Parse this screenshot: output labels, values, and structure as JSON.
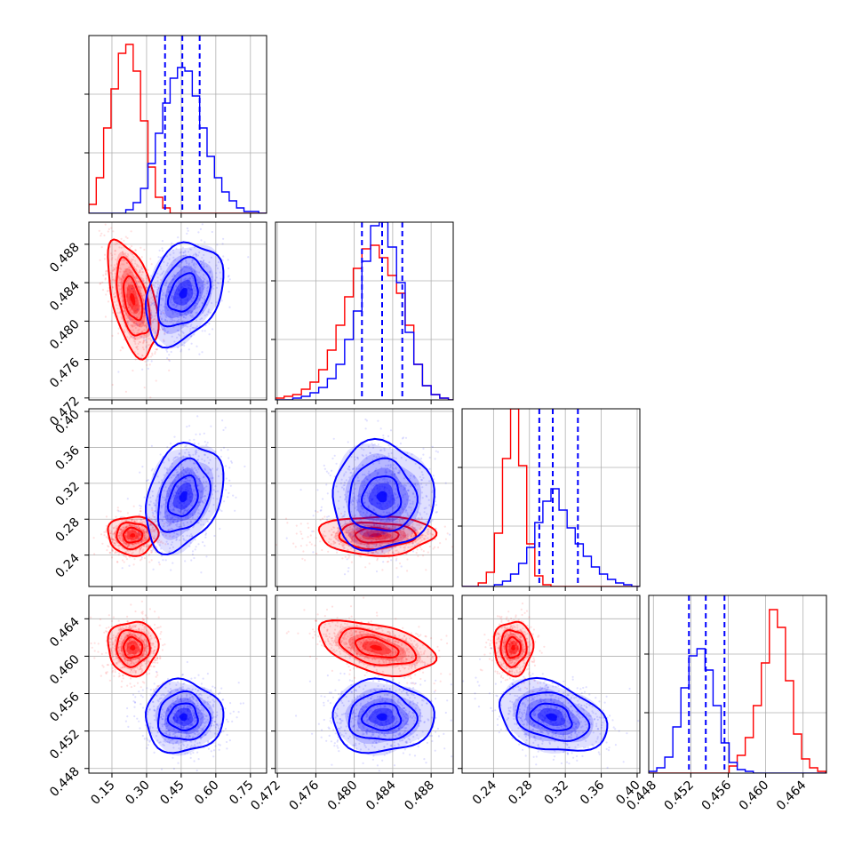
{
  "chart_data": {
    "type": "corner",
    "parameters": [
      {
        "index": 0,
        "range": [
          0.05,
          0.82
        ],
        "ticks": [
          0.15,
          0.3,
          0.45,
          0.6,
          0.75
        ],
        "tick_labels": [
          "0.15",
          "0.30",
          "0.45",
          "0.60",
          "0.75"
        ]
      },
      {
        "index": 1,
        "range": [
          0.4718,
          0.4903
        ],
        "ticks": [
          0.472,
          0.476,
          0.48,
          0.484,
          0.488
        ],
        "tick_labels": [
          "0.472",
          "0.476",
          "0.480",
          "0.484",
          "0.488"
        ]
      },
      {
        "index": 2,
        "range": [
          0.205,
          0.403
        ],
        "ticks": [
          0.24,
          0.28,
          0.32,
          0.36,
          0.4
        ],
        "tick_labels": [
          "0.24",
          "0.28",
          "0.32",
          "0.36",
          "0.40"
        ]
      },
      {
        "index": 3,
        "range": [
          0.4475,
          0.4665
        ],
        "ticks": [
          0.448,
          0.452,
          0.456,
          0.46,
          0.464
        ],
        "tick_labels": [
          "0.448",
          "0.452",
          "0.456",
          "0.460",
          "0.464"
        ]
      }
    ],
    "series": [
      {
        "name": "red",
        "color": "#ff0000",
        "mean": [
          0.24,
          0.4823,
          0.262,
          0.4609
        ],
        "sigma": [
          0.045,
          0.0025,
          0.009,
          0.0012
        ],
        "corr": {
          "0-1": -0.5,
          "0-2": 0.0,
          "0-3": 0.0,
          "1-2": 0.0,
          "1-3": -0.45,
          "2-3": 0.0
        },
        "quantiles": null
      },
      {
        "name": "blue",
        "color": "#0000ff",
        "mean": [
          0.46,
          0.4829,
          0.305,
          0.4535
        ],
        "sigma": [
          0.07,
          0.0022,
          0.025,
          0.0016
        ],
        "corr": {
          "0-1": 0.3,
          "0-2": 0.3,
          "0-3": 0.0,
          "1-2": 0.0,
          "1-3": 0.0,
          "2-3": -0.3
        },
        "quantiles": [
          [
            0.38,
            0.455,
            0.53
          ],
          [
            0.4808,
            0.4829,
            0.485
          ],
          [
            0.291,
            0.306,
            0.334
          ],
          [
            0.4518,
            0.4536,
            0.4556
          ]
        ]
      }
    ],
    "histograms": [
      {
        "param": 0,
        "bins": [
          0.05,
          0.082,
          0.114,
          0.146,
          0.178,
          0.21,
          0.242,
          0.274,
          0.306,
          0.338,
          0.37,
          0.402,
          0.434,
          0.466,
          0.498,
          0.53,
          0.562,
          0.594,
          0.626,
          0.658,
          0.69,
          0.722,
          0.754,
          0.786,
          0.818
        ],
        "red": [
          0.05,
          0.2,
          0.48,
          0.7,
          0.9,
          0.95,
          0.8,
          0.52,
          0.26,
          0.09,
          0.03,
          0,
          0,
          0,
          0,
          0,
          0,
          0,
          0,
          0,
          0,
          0,
          0,
          0
        ],
        "blue": [
          0,
          0,
          0,
          0,
          0,
          0.02,
          0.06,
          0.14,
          0.28,
          0.45,
          0.62,
          0.76,
          0.82,
          0.8,
          0.66,
          0.48,
          0.32,
          0.2,
          0.12,
          0.07,
          0.03,
          0.01,
          0.01,
          0
        ]
      },
      {
        "param": 1,
        "bins": [
          0.4718,
          0.4727,
          0.4736,
          0.4745,
          0.4754,
          0.4763,
          0.4772,
          0.4781,
          0.479,
          0.4799,
          0.4808,
          0.4817,
          0.4826,
          0.4835,
          0.4844,
          0.4853,
          0.4862,
          0.4871,
          0.488,
          0.4889,
          0.4898,
          0.4907
        ],
        "red": [
          0.01,
          0.02,
          0.03,
          0.06,
          0.1,
          0.17,
          0.28,
          0.42,
          0.58,
          0.74,
          0.85,
          0.87,
          0.8,
          0.7,
          0.6,
          0.42,
          0.2,
          0.08,
          0.03,
          0.01,
          0
        ],
        "blue": [
          0,
          0,
          0.01,
          0.02,
          0.04,
          0.07,
          0.12,
          0.2,
          0.34,
          0.5,
          0.78,
          0.98,
          1.0,
          0.86,
          0.66,
          0.38,
          0.2,
          0.08,
          0.03,
          0.01,
          0
        ]
      },
      {
        "param": 2,
        "bins": [
          0.205,
          0.214,
          0.223,
          0.232,
          0.241,
          0.25,
          0.259,
          0.268,
          0.277,
          0.286,
          0.295,
          0.304,
          0.313,
          0.322,
          0.331,
          0.34,
          0.349,
          0.358,
          0.367,
          0.376,
          0.385,
          0.394,
          0.403
        ],
        "red": [
          0,
          0,
          0.02,
          0.08,
          0.3,
          0.72,
          1.0,
          0.68,
          0.24,
          0.06,
          0.01,
          0,
          0,
          0,
          0,
          0,
          0,
          0,
          0,
          0,
          0,
          0
        ],
        "blue": [
          0,
          0,
          0,
          0,
          0.01,
          0.03,
          0.07,
          0.13,
          0.22,
          0.36,
          0.48,
          0.55,
          0.43,
          0.33,
          0.24,
          0.17,
          0.11,
          0.07,
          0.04,
          0.02,
          0.01,
          0
        ]
      },
      {
        "param": 3,
        "bins": [
          0.4475,
          0.44836,
          0.44922,
          0.45008,
          0.45094,
          0.4518,
          0.45266,
          0.45352,
          0.45438,
          0.45524,
          0.4561,
          0.45696,
          0.45782,
          0.45868,
          0.45954,
          0.4604,
          0.46126,
          0.46212,
          0.46298,
          0.46384,
          0.4647,
          0.46556,
          0.46642
        ],
        "red": [
          0,
          0,
          0,
          0,
          0,
          0,
          0,
          0,
          0,
          0,
          0.04,
          0.1,
          0.2,
          0.38,
          0.62,
          0.92,
          0.82,
          0.52,
          0.22,
          0.08,
          0.03,
          0.01
        ],
        "blue": [
          0.01,
          0.03,
          0.09,
          0.26,
          0.48,
          0.66,
          0.7,
          0.58,
          0.38,
          0.17,
          0.06,
          0.02,
          0.01,
          0,
          0,
          0,
          0,
          0,
          0,
          0,
          0,
          0
        ]
      }
    ],
    "grid": true,
    "xlabel": "",
    "ylabel": ""
  }
}
